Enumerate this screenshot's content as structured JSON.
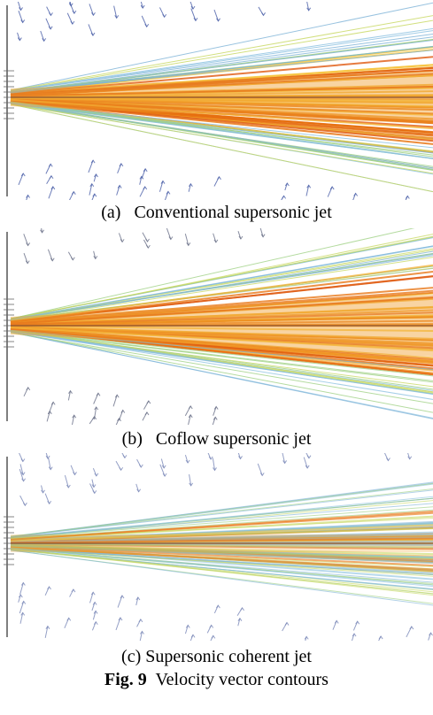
{
  "figure": {
    "panels": [
      {
        "label": "(a)",
        "caption": "Conventional supersonic jet"
      },
      {
        "label": "(b)",
        "caption": "Coflow supersonic jet"
      },
      {
        "label": "(c)",
        "caption": "Supersonic coherent jet"
      }
    ],
    "caption": {
      "label": "Fig. 9",
      "text": "Velocity vector contours"
    }
  }
}
